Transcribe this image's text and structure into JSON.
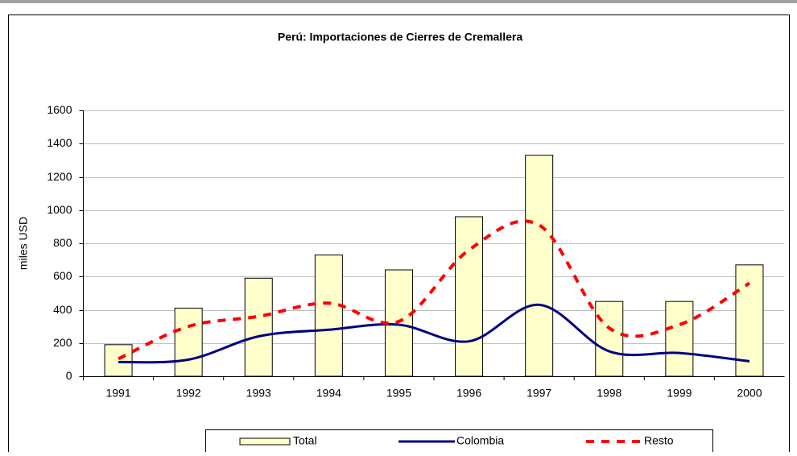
{
  "chart_data": {
    "type": "bar_line",
    "title": "Perú: Importaciones de Cierres de Cremallera",
    "y_label": "miles USD",
    "categories": [
      "1991",
      "1992",
      "1993",
      "1994",
      "1995",
      "1996",
      "1997",
      "1998",
      "1999",
      "2000"
    ],
    "series": [
      {
        "name": "Total",
        "type": "bar",
        "color": "#ffffcc",
        "values": [
          190,
          410,
          590,
          730,
          640,
          960,
          1330,
          450,
          450,
          670
        ]
      },
      {
        "name": "Colombia",
        "type": "line",
        "color": "#000080",
        "dashed": false,
        "values": [
          85,
          100,
          240,
          280,
          310,
          210,
          430,
          150,
          140,
          90
        ]
      },
      {
        "name": "Resto",
        "type": "line",
        "color": "#ff0000",
        "dashed": true,
        "values": [
          105,
          300,
          360,
          440,
          330,
          760,
          910,
          290,
          310,
          560
        ]
      }
    ],
    "ylim": [
      0,
      1600
    ],
    "yticks": [
      0,
      200,
      400,
      600,
      800,
      1000,
      1200,
      1400,
      1600
    ],
    "grid": true,
    "legend": "bottom"
  }
}
